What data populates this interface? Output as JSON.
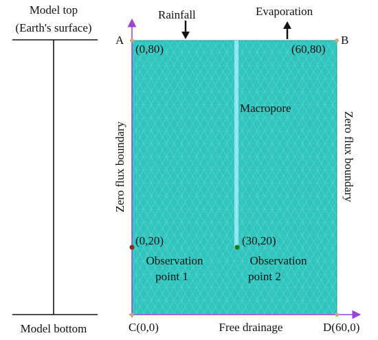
{
  "scale_column": {
    "top_label_line1": "Model top",
    "top_label_line2": "(Earth's surface)",
    "bottom_label": "Model bottom"
  },
  "fluxes": {
    "rainfall": "Rainfall",
    "evaporation": "Evaporation"
  },
  "corners": {
    "A": "A",
    "B": "B",
    "C": "C(0,0)",
    "D": "D(60,0)",
    "A_coord": "(0,80)",
    "B_coord": "(60,80)"
  },
  "boundaries": {
    "left": "Zero flux boundary",
    "right": "Zero flux boundary",
    "bottom": "Free drainage"
  },
  "macropore": "Macropore",
  "observation_points": [
    {
      "coord": "(0,20)",
      "line1": "Observation",
      "line2": "point 1",
      "color": "#8b2a1a"
    },
    {
      "coord": "(30,20)",
      "line1": "Observation",
      "line2": "point 2",
      "color": "#1f7a1f"
    }
  ],
  "colors": {
    "domain_fill": "#2fc4bd",
    "mesh_line": "#7fe3dc",
    "macropore": "#8fe8f0",
    "axis": "#9a45d8",
    "corner_dot": "#c8a97a"
  }
}
